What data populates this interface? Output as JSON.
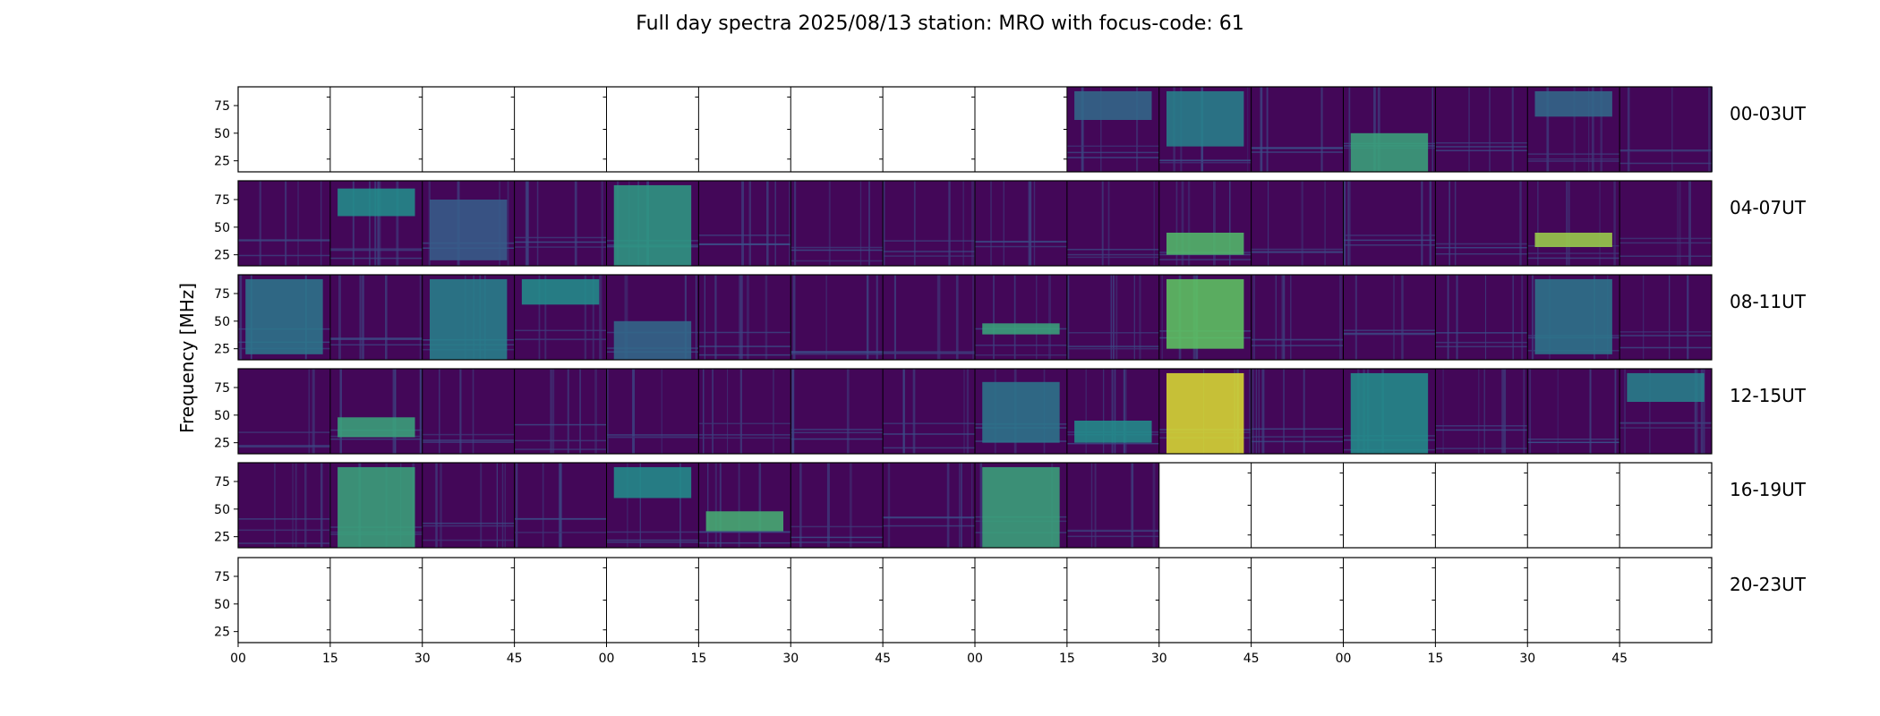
{
  "chart_data": {
    "type": "heatmap",
    "title": "Full day spectra 2025/08/13 station: MRO with focus-code: 61",
    "ylabel": "Frequency [MHz]",
    "xlabel": "",
    "ylim": [
      15,
      92
    ],
    "y_ticks": [
      "25",
      "50",
      "75"
    ],
    "y_tick_values": [
      25,
      50,
      75
    ],
    "x_tick_labels": [
      "00",
      "15",
      "30",
      "45",
      "00",
      "15",
      "30",
      "45",
      "00",
      "15",
      "30",
      "45",
      "00",
      "15",
      "30",
      "45"
    ],
    "x_tick_minutes": [
      0,
      15,
      30,
      45,
      60,
      75,
      90,
      105,
      120,
      135,
      150,
      165,
      180,
      195,
      210,
      225
    ],
    "colormap": [
      "#440154",
      "#3b528b",
      "#21918c",
      "#5ec962",
      "#fde725"
    ],
    "rows": [
      {
        "label": "00-03UT",
        "panels": [
          0,
          0,
          0,
          0,
          0,
          0,
          0,
          0,
          0,
          1,
          1,
          1,
          1,
          1,
          1,
          1
        ],
        "features": [
          {
            "panel": 9,
            "level": 0.35,
            "fmin": 62,
            "fmax": 88
          },
          {
            "panel": 10,
            "level": 0.45,
            "fmin": 38,
            "fmax": 88
          },
          {
            "panel": 12,
            "level": 0.6,
            "fmin": 15,
            "fmax": 50
          },
          {
            "panel": 14,
            "level": 0.35,
            "fmin": 65,
            "fmax": 88
          }
        ]
      },
      {
        "label": "04-07UT",
        "panels": [
          1,
          1,
          1,
          1,
          1,
          1,
          1,
          1,
          1,
          1,
          1,
          1,
          1,
          1,
          1,
          1
        ],
        "features": [
          {
            "panel": 1,
            "level": 0.5,
            "fmin": 60,
            "fmax": 85
          },
          {
            "panel": 2,
            "level": 0.3,
            "fmin": 20,
            "fmax": 75
          },
          {
            "panel": 4,
            "level": 0.55,
            "fmin": 15,
            "fmax": 88
          },
          {
            "panel": 10,
            "level": 0.7,
            "fmin": 25,
            "fmax": 45
          },
          {
            "panel": 14,
            "level": 0.85,
            "fmin": 32,
            "fmax": 45
          }
        ]
      },
      {
        "label": "08-11UT",
        "panels": [
          1,
          1,
          1,
          1,
          1,
          1,
          1,
          1,
          1,
          1,
          1,
          1,
          1,
          1,
          1,
          1
        ],
        "features": [
          {
            "panel": 0,
            "level": 0.4,
            "fmin": 20,
            "fmax": 88
          },
          {
            "panel": 2,
            "level": 0.45,
            "fmin": 15,
            "fmax": 88
          },
          {
            "panel": 3,
            "level": 0.5,
            "fmin": 65,
            "fmax": 88
          },
          {
            "panel": 4,
            "level": 0.35,
            "fmin": 15,
            "fmax": 50
          },
          {
            "panel": 8,
            "level": 0.6,
            "fmin": 38,
            "fmax": 48
          },
          {
            "panel": 10,
            "level": 0.75,
            "fmin": 25,
            "fmax": 88
          },
          {
            "panel": 14,
            "level": 0.4,
            "fmin": 20,
            "fmax": 88
          }
        ]
      },
      {
        "label": "12-15UT",
        "panels": [
          1,
          1,
          1,
          1,
          1,
          1,
          1,
          1,
          1,
          1,
          1,
          1,
          1,
          1,
          1,
          1
        ],
        "features": [
          {
            "panel": 1,
            "level": 0.6,
            "fmin": 30,
            "fmax": 48
          },
          {
            "panel": 8,
            "level": 0.4,
            "fmin": 25,
            "fmax": 80
          },
          {
            "panel": 9,
            "level": 0.5,
            "fmin": 25,
            "fmax": 45
          },
          {
            "panel": 10,
            "level": 0.95,
            "fmin": 15,
            "fmax": 88
          },
          {
            "panel": 12,
            "level": 0.5,
            "fmin": 15,
            "fmax": 88
          },
          {
            "panel": 15,
            "level": 0.45,
            "fmin": 62,
            "fmax": 88
          }
        ]
      },
      {
        "label": "16-19UT",
        "panels": [
          1,
          1,
          1,
          1,
          1,
          1,
          1,
          1,
          1,
          1,
          0,
          0,
          0,
          0,
          0,
          0
        ],
        "features": [
          {
            "panel": 1,
            "level": 0.6,
            "fmin": 15,
            "fmax": 88
          },
          {
            "panel": 4,
            "level": 0.5,
            "fmin": 60,
            "fmax": 88
          },
          {
            "panel": 5,
            "level": 0.65,
            "fmin": 30,
            "fmax": 48
          },
          {
            "panel": 8,
            "level": 0.6,
            "fmin": 15,
            "fmax": 88
          }
        ]
      },
      {
        "label": "20-23UT",
        "panels": [
          0,
          0,
          0,
          0,
          0,
          0,
          0,
          0,
          0,
          0,
          0,
          0,
          0,
          0,
          0,
          0
        ],
        "features": []
      }
    ]
  }
}
